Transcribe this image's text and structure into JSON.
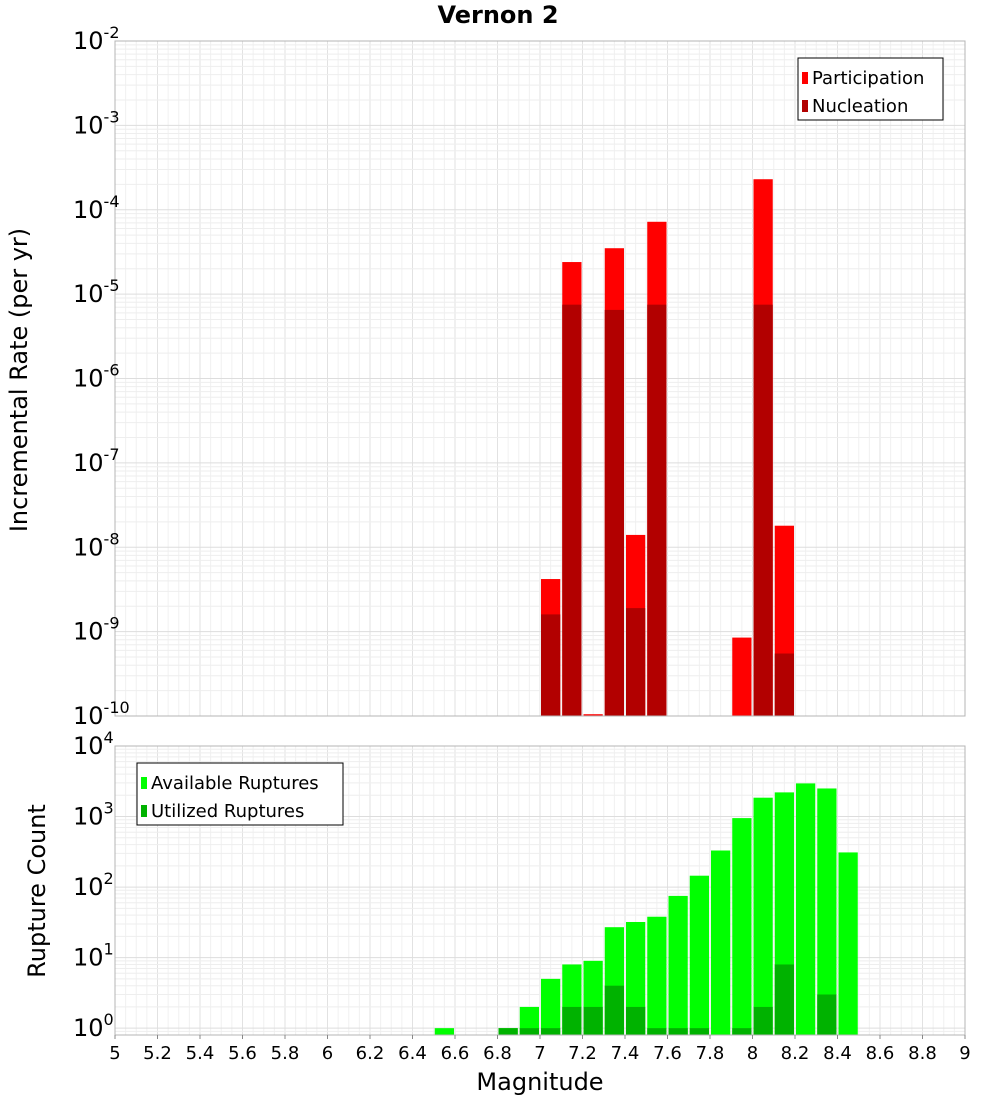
{
  "chart_data": [
    {
      "type": "bar",
      "title": "Vernon 2",
      "xlabel": "",
      "ylabel": "Incremental Rate (per yr)",
      "yscale": "log",
      "ylim": [
        1e-10,
        0.01
      ],
      "xlim": [
        5,
        9
      ],
      "bar_width": 0.1,
      "legend_position": "top-right",
      "y_tick_labels": [
        {
          "value": 1e-10,
          "base": "10",
          "exp": "-10"
        },
        {
          "value": 1e-09,
          "base": "10",
          "exp": "-9"
        },
        {
          "value": 1e-08,
          "base": "10",
          "exp": "-8"
        },
        {
          "value": 1e-07,
          "base": "10",
          "exp": "-7"
        },
        {
          "value": 1e-06,
          "base": "10",
          "exp": "-6"
        },
        {
          "value": 1e-05,
          "base": "10",
          "exp": "-5"
        },
        {
          "value": 0.0001,
          "base": "10",
          "exp": "-4"
        },
        {
          "value": 0.001,
          "base": "10",
          "exp": "-3"
        },
        {
          "value": 0.01,
          "base": "10",
          "exp": "-2"
        }
      ],
      "series": [
        {
          "name": "Participation",
          "color": "#ff0000",
          "points": [
            {
              "x": 7.05,
              "y": 4.2e-09
            },
            {
              "x": 7.15,
              "y": 2.4e-05
            },
            {
              "x": 7.25,
              "y": 1.05e-10
            },
            {
              "x": 7.35,
              "y": 3.5e-05
            },
            {
              "x": 7.45,
              "y": 1.4e-08
            },
            {
              "x": 7.55,
              "y": 7.2e-05
            },
            {
              "x": 7.95,
              "y": 8.5e-10
            },
            {
              "x": 8.05,
              "y": 0.00023
            },
            {
              "x": 8.15,
              "y": 1.8e-08
            }
          ]
        },
        {
          "name": "Nucleation",
          "color": "#b20000",
          "points": [
            {
              "x": 7.05,
              "y": 1.6e-09
            },
            {
              "x": 7.15,
              "y": 7.5e-06
            },
            {
              "x": 7.35,
              "y": 6.5e-06
            },
            {
              "x": 7.45,
              "y": 1.9e-09
            },
            {
              "x": 7.55,
              "y": 7.5e-06
            },
            {
              "x": 8.05,
              "y": 7.5e-06
            },
            {
              "x": 8.15,
              "y": 5.5e-10
            }
          ]
        }
      ]
    },
    {
      "type": "bar",
      "title": "",
      "xlabel": "Magnitude",
      "ylabel": "Rupture Count",
      "yscale": "log",
      "ylim": [
        0.8,
        10000
      ],
      "xlim": [
        5,
        9
      ],
      "bar_width": 0.1,
      "legend_position": "top-left",
      "x_tick_labels": [
        "5",
        "5.2",
        "5.4",
        "5.6",
        "5.8",
        "6",
        "6.2",
        "6.4",
        "6.6",
        "6.8",
        "7",
        "7.2",
        "7.4",
        "7.6",
        "7.8",
        "8",
        "8.2",
        "8.4",
        "8.6",
        "8.8",
        "9"
      ],
      "y_tick_labels": [
        {
          "value": 1,
          "base": "10",
          "exp": "0"
        },
        {
          "value": 10,
          "base": "10",
          "exp": "1"
        },
        {
          "value": 100,
          "base": "10",
          "exp": "2"
        },
        {
          "value": 1000,
          "base": "10",
          "exp": "3"
        },
        {
          "value": 10000,
          "base": "10",
          "exp": "4"
        }
      ],
      "series": [
        {
          "name": "Available Ruptures",
          "color": "#00ff00",
          "points": [
            {
              "x": 6.55,
              "y": 1
            },
            {
              "x": 6.85,
              "y": 1
            },
            {
              "x": 6.95,
              "y": 2
            },
            {
              "x": 7.05,
              "y": 5
            },
            {
              "x": 7.15,
              "y": 8
            },
            {
              "x": 7.25,
              "y": 9
            },
            {
              "x": 7.35,
              "y": 27
            },
            {
              "x": 7.45,
              "y": 32
            },
            {
              "x": 7.55,
              "y": 38
            },
            {
              "x": 7.65,
              "y": 75
            },
            {
              "x": 7.75,
              "y": 145
            },
            {
              "x": 7.85,
              "y": 330
            },
            {
              "x": 7.95,
              "y": 950
            },
            {
              "x": 8.05,
              "y": 1850
            },
            {
              "x": 8.15,
              "y": 2200
            },
            {
              "x": 8.25,
              "y": 2950
            },
            {
              "x": 8.35,
              "y": 2500
            },
            {
              "x": 8.45,
              "y": 310
            }
          ]
        },
        {
          "name": "Utilized Ruptures",
          "color": "#00b200",
          "points": [
            {
              "x": 6.85,
              "y": 1
            },
            {
              "x": 6.95,
              "y": 1
            },
            {
              "x": 7.05,
              "y": 1
            },
            {
              "x": 7.15,
              "y": 2
            },
            {
              "x": 7.25,
              "y": 2
            },
            {
              "x": 7.35,
              "y": 4
            },
            {
              "x": 7.45,
              "y": 2
            },
            {
              "x": 7.55,
              "y": 1
            },
            {
              "x": 7.65,
              "y": 1
            },
            {
              "x": 7.75,
              "y": 1
            },
            {
              "x": 7.95,
              "y": 1
            },
            {
              "x": 8.05,
              "y": 2
            },
            {
              "x": 8.15,
              "y": 8
            },
            {
              "x": 8.35,
              "y": 3
            }
          ]
        }
      ]
    }
  ]
}
